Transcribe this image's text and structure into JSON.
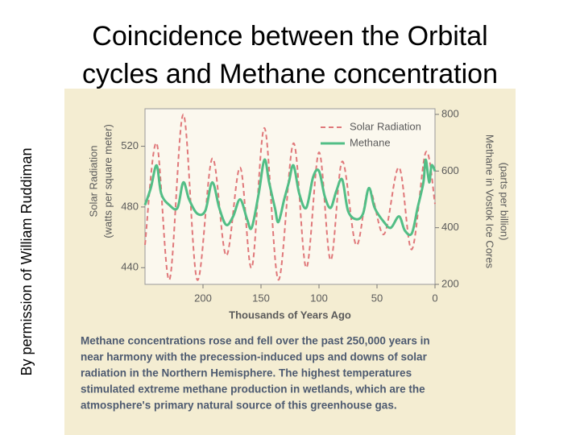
{
  "slide": {
    "title": [
      "Coincidence between the Orbital",
      "cycles and Methane concentration"
    ],
    "credit": "By permission of William Ruddiman"
  },
  "chart_data": {
    "type": "line",
    "xlabel": "Thousands of Years Ago",
    "ylabel": [
      "Solar Radiation",
      "(watts per square meter)"
    ],
    "y2label": [
      "Methane in Vostok Ice Cores",
      "(parts per billion)"
    ],
    "xlim": [
      250,
      0
    ],
    "xticks": [
      200,
      150,
      100,
      50,
      0
    ],
    "ylim": [
      429,
      541
    ],
    "yticks": [
      440,
      480,
      520
    ],
    "y2lim": [
      200,
      800
    ],
    "y2ticks": [
      200,
      400,
      600,
      800
    ],
    "grid": false,
    "legend": "upper right",
    "series": [
      {
        "name": "Solar Radiation",
        "color": "#e0787a",
        "dashed": true,
        "x": [
          250,
          240,
          229,
          217,
          205,
          192,
          180,
          168,
          158,
          147,
          135,
          122,
          111,
          100,
          90,
          80,
          68,
          57,
          44,
          31,
          20,
          8,
          0
        ],
        "values": [
          455,
          522,
          432,
          541,
          432,
          512,
          448,
          506,
          440,
          532,
          432,
          522,
          440,
          516,
          445,
          510,
          455,
          492,
          462,
          506,
          452,
          516,
          482
        ]
      },
      {
        "name": "Methane",
        "color": "#52be86",
        "dashed": false,
        "axis": "y2",
        "x": [
          250,
          245,
          240,
          236,
          229,
          222,
          217,
          212,
          205,
          198,
          192,
          186,
          180,
          174,
          168,
          162,
          158,
          152,
          147,
          143,
          138,
          135,
          130,
          126,
          122,
          117,
          111,
          105,
          100,
          95,
          90,
          85,
          80,
          75,
          68,
          62,
          57,
          52,
          44,
          38,
          31,
          26,
          20,
          15,
          10,
          8,
          5,
          3,
          0
        ],
        "values": [
          480,
          540,
          620,
          520,
          480,
          470,
          560,
          500,
          450,
          460,
          560,
          470,
          410,
          440,
          500,
          430,
          400,
          520,
          640,
          560,
          470,
          420,
          500,
          560,
          620,
          520,
          470,
          580,
          600,
          510,
          470,
          530,
          570,
          460,
          430,
          450,
          540,
          470,
          420,
          400,
          440,
          390,
          380,
          470,
          560,
          640,
          560,
          620,
          600
        ]
      }
    ]
  },
  "caption": [
    "Methane concentrations rose and fell over the past 250,000 years in",
    "near harmony with the precession-induced ups and downs of solar",
    "radiation in the Northern Hemisphere. The highest temperatures",
    "stimulated extreme methane production in wetlands, which are the",
    "atmosphere's primary natural source of this greenhouse gas."
  ]
}
